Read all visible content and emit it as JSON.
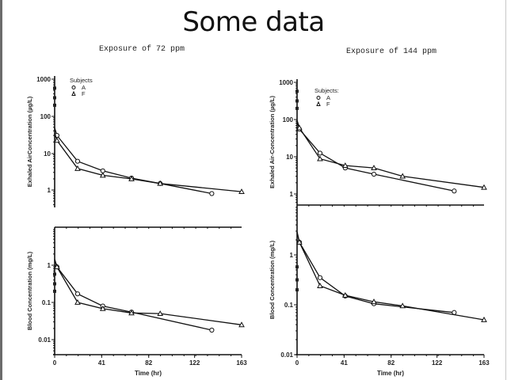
{
  "slide": {
    "title": "Some data"
  },
  "panels": [
    {
      "exposure_label": "Exposure of 72 ppm"
    },
    {
      "exposure_label": "Exposure of 144 ppm"
    }
  ],
  "legend": {
    "title": "Subjects",
    "title_right": "Subjects:",
    "entries": [
      {
        "marker": "circle",
        "label": "A"
      },
      {
        "marker": "triangle",
        "label": "F"
      }
    ]
  },
  "axes": {
    "x_label": "Time (hr)",
    "x_ticks": [
      "0",
      "41",
      "82",
      "122",
      "163"
    ],
    "upper_y_label": "Exhaled AirConcentration (µg/L)",
    "upper_y_label_right": "Exhaled Air-Concentration (µg/L)",
    "upper_y_ticks": [
      "1000",
      "100",
      "10",
      "1"
    ],
    "lower_y_label": "Blood Concentration (mg/L)",
    "lower_y_ticks_left": [
      "1",
      "0.1",
      "0.01"
    ],
    "lower_y_ticks_right": [
      "1",
      "0.1",
      "0.01"
    ]
  },
  "chart_data": [
    {
      "type": "line",
      "title": "Exposure of 72 ppm — Exhaled Air Concentration",
      "xlabel": "Time (hr)",
      "ylabel": "Exhaled AirConcentration (µg/L)",
      "yscale": "log",
      "ylim": [
        0.5,
        1000
      ],
      "xlim": [
        0,
        163
      ],
      "x_ticks": [
        0,
        41,
        82,
        122,
        163
      ],
      "legend_position": "upper-left",
      "series": [
        {
          "name": "A",
          "marker": "circle",
          "x": [
            2,
            20,
            42,
            67,
            92,
            137
          ],
          "y": [
            30,
            6,
            3.3,
            2.1,
            1.5,
            0.8
          ]
        },
        {
          "name": "F",
          "marker": "triangle",
          "x": [
            2,
            20,
            42,
            67,
            92,
            163
          ],
          "y": [
            22,
            3.8,
            2.5,
            2.0,
            1.5,
            0.9
          ]
        }
      ]
    },
    {
      "type": "line",
      "title": "Exposure of 72 ppm — Blood Concentration",
      "xlabel": "Time (hr)",
      "ylabel": "Blood Concentration (mg/L)",
      "yscale": "log",
      "ylim": [
        0.005,
        5
      ],
      "xlim": [
        0,
        163
      ],
      "x_ticks": [
        0,
        41,
        82,
        122,
        163
      ],
      "series": [
        {
          "name": "A",
          "marker": "circle",
          "x": [
            2,
            20,
            42,
            67,
            137
          ],
          "y": [
            0.9,
            0.17,
            0.08,
            0.055,
            0.018
          ]
        },
        {
          "name": "F",
          "marker": "triangle",
          "x": [
            2,
            20,
            42,
            67,
            92,
            163
          ],
          "y": [
            0.9,
            0.1,
            0.068,
            0.052,
            0.05,
            0.025
          ]
        }
      ]
    },
    {
      "type": "line",
      "title": "Exposure of 144 ppm — Exhaled Air Concentration",
      "xlabel": "Time (hr)",
      "ylabel": "Exhaled Air-Concentration (µg/L)",
      "yscale": "log",
      "ylim": [
        0.6,
        1000
      ],
      "xlim": [
        0,
        163
      ],
      "x_ticks": [
        0,
        41,
        82,
        122,
        163
      ],
      "legend_position": "upper-left",
      "series": [
        {
          "name": "A",
          "marker": "circle",
          "x": [
            2,
            20,
            42,
            67,
            137
          ],
          "y": [
            55,
            12.5,
            5,
            3.4,
            1.2
          ]
        },
        {
          "name": "F",
          "marker": "triangle",
          "x": [
            2,
            20,
            42,
            67,
            92,
            163
          ],
          "y": [
            60,
            8.8,
            5.8,
            5,
            3,
            1.5
          ]
        }
      ]
    },
    {
      "type": "line",
      "title": "Exposure of 144 ppm — Blood Concentration",
      "xlabel": "Time (hr)",
      "ylabel": "Blood Concentration (mg/L)",
      "yscale": "log",
      "ylim": [
        0.01,
        10
      ],
      "xlim": [
        0,
        163
      ],
      "x_ticks": [
        0,
        41,
        82,
        122,
        163
      ],
      "series": [
        {
          "name": "A",
          "marker": "circle",
          "x": [
            2,
            20,
            42,
            67,
            137
          ],
          "y": [
            1.8,
            0.35,
            0.15,
            0.105,
            0.07
          ]
        },
        {
          "name": "F",
          "marker": "triangle",
          "x": [
            2,
            20,
            42,
            67,
            92,
            163
          ],
          "y": [
            1.8,
            0.24,
            0.155,
            0.115,
            0.095,
            0.05
          ]
        }
      ]
    }
  ]
}
